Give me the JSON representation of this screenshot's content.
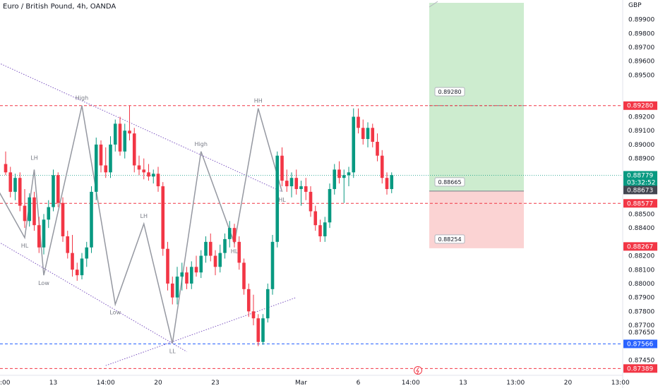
{
  "header": {
    "title": "Euro / British Pound, 4h, OANDA",
    "currency": "GBP"
  },
  "chart_data": {
    "type": "candlestick",
    "symbol": "Euro / British Pound",
    "interval": "4h",
    "exchange": "OANDA",
    "ylim": [
      0.8734,
      0.9004
    ],
    "y_ticks": [
      {
        "value": 0.8745,
        "label": "0.87450"
      },
      {
        "value": 0.8755,
        "label": "0.87550"
      },
      {
        "value": 0.8765,
        "label": "0.87650"
      },
      {
        "value": 0.877,
        "label": "0.87700"
      },
      {
        "value": 0.878,
        "label": "0.87800"
      },
      {
        "value": 0.879,
        "label": "0.87900"
      },
      {
        "value": 0.88,
        "label": "0.88000"
      },
      {
        "value": 0.881,
        "label": "0.88100"
      },
      {
        "value": 0.882,
        "label": "0.88200"
      },
      {
        "value": 0.884,
        "label": "0.88400"
      },
      {
        "value": 0.885,
        "label": "0.88500"
      },
      {
        "value": 0.889,
        "label": "0.88900"
      },
      {
        "value": 0.89,
        "label": "0.89000"
      },
      {
        "value": 0.891,
        "label": "0.89100"
      },
      {
        "value": 0.892,
        "label": "0.89200"
      },
      {
        "value": 0.895,
        "label": "0.89500"
      },
      {
        "value": 0.896,
        "label": "0.89600"
      },
      {
        "value": 0.897,
        "label": "0.89700"
      },
      {
        "value": 0.898,
        "label": "0.89800"
      },
      {
        "value": 0.899,
        "label": "0.89900"
      }
    ],
    "x_ticks": [
      {
        "label": "13",
        "bar": 10
      },
      {
        "label": "14:00",
        "bar": 21
      },
      {
        "label": "20",
        "bar": 32
      },
      {
        "label": "23",
        "bar": 44
      },
      {
        "label": "Mar",
        "bar": 62
      },
      {
        "label": "6",
        "bar": 74
      },
      {
        "label": "14:00",
        "bar": 85
      },
      {
        "label": "13",
        "bar": 96
      },
      {
        "label": "13:00",
        "bar": 107
      },
      {
        "label": "20",
        "bar": 118
      },
      {
        "label": "13:00",
        "bar": 129
      }
    ],
    "x_edge_label": ":00",
    "bar_count_total": 134,
    "candles": [
      {
        "o": 0.8886,
        "h": 0.8895,
        "l": 0.8878,
        "c": 0.888
      },
      {
        "o": 0.888,
        "h": 0.8884,
        "l": 0.8862,
        "c": 0.8866
      },
      {
        "o": 0.8866,
        "h": 0.8879,
        "l": 0.886,
        "c": 0.8876
      },
      {
        "o": 0.8876,
        "h": 0.888,
        "l": 0.8852,
        "c": 0.8856
      },
      {
        "o": 0.8856,
        "h": 0.8868,
        "l": 0.884,
        "c": 0.8845
      },
      {
        "o": 0.8845,
        "h": 0.8865,
        "l": 0.8841,
        "c": 0.8862
      },
      {
        "o": 0.8862,
        "h": 0.8866,
        "l": 0.8838,
        "c": 0.8842
      },
      {
        "o": 0.8842,
        "h": 0.8848,
        "l": 0.8822,
        "c": 0.8826
      },
      {
        "o": 0.8826,
        "h": 0.885,
        "l": 0.8821,
        "c": 0.8846
      },
      {
        "o": 0.8846,
        "h": 0.886,
        "l": 0.884,
        "c": 0.8855
      },
      {
        "o": 0.8855,
        "h": 0.8882,
        "l": 0.8852,
        "c": 0.8878
      },
      {
        "o": 0.8878,
        "h": 0.888,
        "l": 0.8855,
        "c": 0.8858
      },
      {
        "o": 0.8858,
        "h": 0.8862,
        "l": 0.883,
        "c": 0.8834
      },
      {
        "o": 0.8834,
        "h": 0.8838,
        "l": 0.8818,
        "c": 0.8822
      },
      {
        "o": 0.8822,
        "h": 0.8835,
        "l": 0.8805,
        "c": 0.881
      },
      {
        "o": 0.881,
        "h": 0.8815,
        "l": 0.8802,
        "c": 0.8806
      },
      {
        "o": 0.8806,
        "h": 0.8822,
        "l": 0.8803,
        "c": 0.8818
      },
      {
        "o": 0.8818,
        "h": 0.883,
        "l": 0.8812,
        "c": 0.8826
      },
      {
        "o": 0.8826,
        "h": 0.887,
        "l": 0.8822,
        "c": 0.8866
      },
      {
        "o": 0.8866,
        "h": 0.8905,
        "l": 0.886,
        "c": 0.89
      },
      {
        "o": 0.89,
        "h": 0.8903,
        "l": 0.888,
        "c": 0.8885
      },
      {
        "o": 0.8885,
        "h": 0.8898,
        "l": 0.8876,
        "c": 0.888
      },
      {
        "o": 0.888,
        "h": 0.8906,
        "l": 0.8876,
        "c": 0.89
      },
      {
        "o": 0.89,
        "h": 0.8918,
        "l": 0.8895,
        "c": 0.8915
      },
      {
        "o": 0.8915,
        "h": 0.892,
        "l": 0.8892,
        "c": 0.8895
      },
      {
        "o": 0.8895,
        "h": 0.8915,
        "l": 0.889,
        "c": 0.891
      },
      {
        "o": 0.891,
        "h": 0.8928,
        "l": 0.8903,
        "c": 0.8908
      },
      {
        "o": 0.8908,
        "h": 0.8912,
        "l": 0.888,
        "c": 0.8885
      },
      {
        "o": 0.8885,
        "h": 0.8892,
        "l": 0.8878,
        "c": 0.8882
      },
      {
        "o": 0.8882,
        "h": 0.889,
        "l": 0.8875,
        "c": 0.888
      },
      {
        "o": 0.888,
        "h": 0.8886,
        "l": 0.8874,
        "c": 0.8877
      },
      {
        "o": 0.8877,
        "h": 0.8882,
        "l": 0.8872,
        "c": 0.8879
      },
      {
        "o": 0.8879,
        "h": 0.8884,
        "l": 0.8866,
        "c": 0.887
      },
      {
        "o": 0.887,
        "h": 0.8873,
        "l": 0.882,
        "c": 0.8825
      },
      {
        "o": 0.8825,
        "h": 0.883,
        "l": 0.8795,
        "c": 0.88
      },
      {
        "o": 0.88,
        "h": 0.8805,
        "l": 0.8785,
        "c": 0.879
      },
      {
        "o": 0.879,
        "h": 0.8812,
        "l": 0.8785,
        "c": 0.8805
      },
      {
        "o": 0.8805,
        "h": 0.8815,
        "l": 0.8795,
        "c": 0.8808
      },
      {
        "o": 0.8808,
        "h": 0.8812,
        "l": 0.8796,
        "c": 0.88
      },
      {
        "o": 0.88,
        "h": 0.8816,
        "l": 0.8796,
        "c": 0.8812
      },
      {
        "o": 0.8812,
        "h": 0.882,
        "l": 0.8805,
        "c": 0.8808
      },
      {
        "o": 0.8808,
        "h": 0.8824,
        "l": 0.8804,
        "c": 0.882
      },
      {
        "o": 0.882,
        "h": 0.8834,
        "l": 0.8815,
        "c": 0.883
      },
      {
        "o": 0.883,
        "h": 0.8836,
        "l": 0.8816,
        "c": 0.882
      },
      {
        "o": 0.882,
        "h": 0.8824,
        "l": 0.8806,
        "c": 0.8812
      },
      {
        "o": 0.8812,
        "h": 0.8828,
        "l": 0.8808,
        "c": 0.8822
      },
      {
        "o": 0.8822,
        "h": 0.8836,
        "l": 0.8818,
        "c": 0.8832
      },
      {
        "o": 0.8832,
        "h": 0.8845,
        "l": 0.8826,
        "c": 0.884
      },
      {
        "o": 0.884,
        "h": 0.8843,
        "l": 0.8826,
        "c": 0.883
      },
      {
        "o": 0.883,
        "h": 0.8834,
        "l": 0.881,
        "c": 0.8815
      },
      {
        "o": 0.8815,
        "h": 0.8818,
        "l": 0.8792,
        "c": 0.8796
      },
      {
        "o": 0.8796,
        "h": 0.88,
        "l": 0.8776,
        "c": 0.878
      },
      {
        "o": 0.878,
        "h": 0.8792,
        "l": 0.877,
        "c": 0.8775
      },
      {
        "o": 0.8775,
        "h": 0.8778,
        "l": 0.8755,
        "c": 0.8758
      },
      {
        "o": 0.8758,
        "h": 0.8778,
        "l": 0.8756,
        "c": 0.8775
      },
      {
        "o": 0.8775,
        "h": 0.88,
        "l": 0.8772,
        "c": 0.8796
      },
      {
        "o": 0.8796,
        "h": 0.8835,
        "l": 0.8792,
        "c": 0.883
      },
      {
        "o": 0.883,
        "h": 0.8895,
        "l": 0.8826,
        "c": 0.8892
      },
      {
        "o": 0.8892,
        "h": 0.8898,
        "l": 0.887,
        "c": 0.8874
      },
      {
        "o": 0.8874,
        "h": 0.8882,
        "l": 0.8866,
        "c": 0.887
      },
      {
        "o": 0.887,
        "h": 0.888,
        "l": 0.8862,
        "c": 0.8876
      },
      {
        "o": 0.8876,
        "h": 0.8882,
        "l": 0.8864,
        "c": 0.8868
      },
      {
        "o": 0.8868,
        "h": 0.8874,
        "l": 0.8856,
        "c": 0.887
      },
      {
        "o": 0.887,
        "h": 0.8876,
        "l": 0.886,
        "c": 0.8866
      },
      {
        "o": 0.8866,
        "h": 0.887,
        "l": 0.8848,
        "c": 0.8852
      },
      {
        "o": 0.8852,
        "h": 0.8856,
        "l": 0.8838,
        "c": 0.8842
      },
      {
        "o": 0.8842,
        "h": 0.8846,
        "l": 0.883,
        "c": 0.8834
      },
      {
        "o": 0.8834,
        "h": 0.8848,
        "l": 0.883,
        "c": 0.8844
      },
      {
        "o": 0.8844,
        "h": 0.8872,
        "l": 0.884,
        "c": 0.8868
      },
      {
        "o": 0.8868,
        "h": 0.8886,
        "l": 0.8864,
        "c": 0.8882
      },
      {
        "o": 0.8882,
        "h": 0.8888,
        "l": 0.8872,
        "c": 0.8876
      },
      {
        "o": 0.8876,
        "h": 0.8882,
        "l": 0.8858,
        "c": 0.8878
      },
      {
        "o": 0.8878,
        "h": 0.8884,
        "l": 0.887,
        "c": 0.888
      },
      {
        "o": 0.888,
        "h": 0.8926,
        "l": 0.8876,
        "c": 0.892
      },
      {
        "o": 0.892,
        "h": 0.8926,
        "l": 0.8908,
        "c": 0.8912
      },
      {
        "o": 0.8912,
        "h": 0.8918,
        "l": 0.89,
        "c": 0.8904
      },
      {
        "o": 0.8904,
        "h": 0.8916,
        "l": 0.8898,
        "c": 0.8912
      },
      {
        "o": 0.8912,
        "h": 0.8915,
        "l": 0.8898,
        "c": 0.8902
      },
      {
        "o": 0.8902,
        "h": 0.8908,
        "l": 0.8888,
        "c": 0.8892
      },
      {
        "o": 0.8892,
        "h": 0.8896,
        "l": 0.8872,
        "c": 0.8876
      },
      {
        "o": 0.8876,
        "h": 0.888,
        "l": 0.8864,
        "c": 0.8868
      },
      {
        "o": 0.8868,
        "h": 0.888,
        "l": 0.8865,
        "c": 0.8878
      }
    ],
    "horizontal_levels": [
      {
        "value": 0.8928,
        "label": "0.89280",
        "color": "#f23645"
      },
      {
        "value": 0.88577,
        "label": "0.88577",
        "color": "#f23645"
      },
      {
        "value": 0.87566,
        "label": "0.87566",
        "color": "#2962ff"
      },
      {
        "value": 0.87389,
        "label": "0.87389",
        "color": "#f23645"
      }
    ],
    "price_tags": [
      {
        "value": 0.88779,
        "label": "0.88779",
        "sub": "03:32:52",
        "color": "#089981"
      },
      {
        "value": 0.88673,
        "label": "0.88673",
        "color": "#434651"
      },
      {
        "value": 0.88267,
        "label": "0.88267",
        "color": "#f23645"
      }
    ],
    "position": {
      "entry": 0.88665,
      "target": 0.8928,
      "stop": 0.88254,
      "entry_label": "0.88665",
      "target_label": "0.89280",
      "stop_label": "0.88254",
      "profit_color": "#cdeccf",
      "loss_color": "#fbd3d3"
    },
    "pattern_labels": [
      {
        "text": "LH",
        "bar": 6,
        "value": 0.8885,
        "pos": "above"
      },
      {
        "text": "HL",
        "bar": 4,
        "value": 0.8833,
        "pos": "below"
      },
      {
        "text": "Low",
        "bar": 8,
        "value": 0.8806,
        "pos": "below"
      },
      {
        "text": "High",
        "bar": 16,
        "value": 0.8928,
        "pos": "above"
      },
      {
        "text": "Low",
        "bar": 23,
        "value": 0.8785,
        "pos": "below"
      },
      {
        "text": "LH",
        "bar": 29,
        "value": 0.8843,
        "pos": "above"
      },
      {
        "text": "LL",
        "bar": 35,
        "value": 0.8757,
        "pos": "below"
      },
      {
        "text": "High",
        "bar": 41,
        "value": 0.8895,
        "pos": "above"
      },
      {
        "text": "HL",
        "bar": 48,
        "value": 0.8829,
        "pos": "below"
      },
      {
        "text": "HH",
        "bar": 53,
        "value": 0.8926,
        "pos": "above"
      },
      {
        "text": "HL",
        "bar": 58,
        "value": 0.8866,
        "pos": "below"
      }
    ],
    "zigzag": [
      {
        "bar": -3,
        "value": 0.8876
      },
      {
        "bar": 4,
        "value": 0.8833
      },
      {
        "bar": 6,
        "value": 0.8882
      },
      {
        "bar": 8,
        "value": 0.8806
      },
      {
        "bar": 16,
        "value": 0.8928
      },
      {
        "bar": 23,
        "value": 0.8785
      },
      {
        "bar": 29,
        "value": 0.8843
      },
      {
        "bar": 35,
        "value": 0.8757
      },
      {
        "bar": 41,
        "value": 0.8895
      },
      {
        "bar": 48,
        "value": 0.8829
      },
      {
        "bar": 53,
        "value": 0.8926
      },
      {
        "bar": 58,
        "value": 0.8866
      }
    ],
    "trend_lines": [
      {
        "from": {
          "bar": -1,
          "value": 0.8958
        },
        "to": {
          "bar": 58,
          "value": 0.8866
        },
        "color": "#7e57c2",
        "style": "dotted"
      },
      {
        "from": {
          "bar": -1,
          "value": 0.8829
        },
        "to": {
          "bar": 38,
          "value": 0.8751
        },
        "color": "#7e57c2",
        "style": "dotted"
      },
      {
        "from": {
          "bar": 21,
          "value": 0.8741
        },
        "to": {
          "bar": 61,
          "value": 0.879
        },
        "color": "#7e57c2",
        "style": "dotted"
      }
    ],
    "grid": false
  }
}
